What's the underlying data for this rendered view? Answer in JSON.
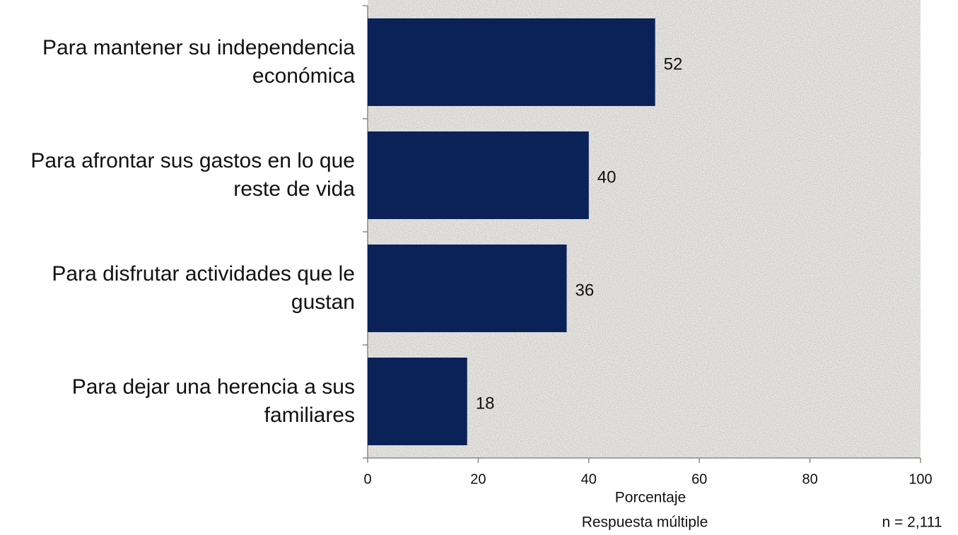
{
  "chart_data": {
    "type": "bar",
    "orientation": "horizontal",
    "categories": [
      "Para mantener su independencia económica",
      "Para afrontar sus gastos en lo que reste de vida",
      "Para disfrutar actividades que le gustan",
      "Para dejar una herencia a sus familiares"
    ],
    "values": [
      52,
      40,
      36,
      18
    ],
    "color": "#0b2259",
    "xlim": [
      0,
      100
    ],
    "xticks": [
      0,
      20,
      40,
      60,
      80,
      100
    ],
    "x_label": "Porcentaje",
    "annotations": [
      "Respuesta múltiple",
      "n = 2,111"
    ]
  }
}
